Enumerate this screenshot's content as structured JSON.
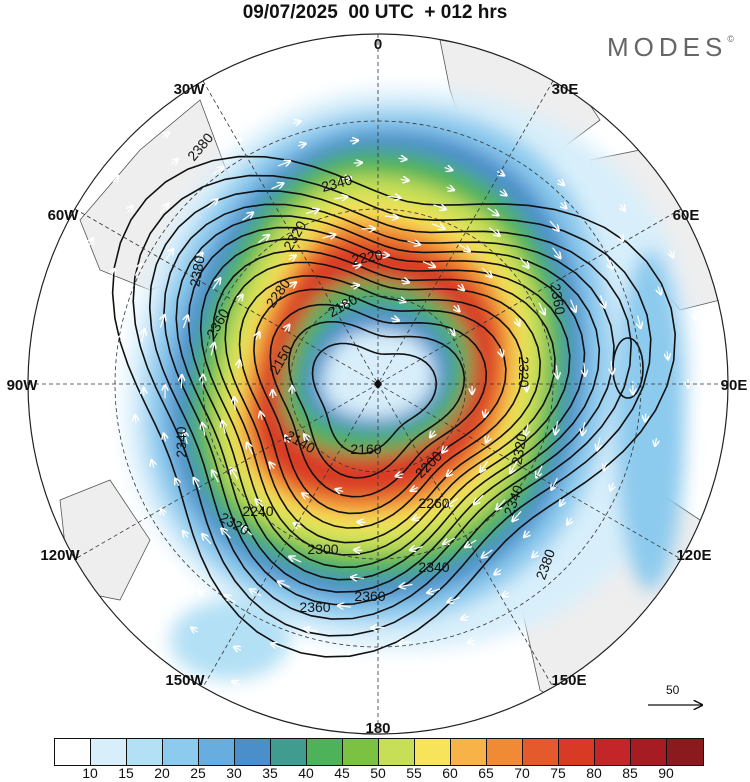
{
  "title": "09/07/2025  00 UTC  + 012 hrs",
  "brand": "MODES",
  "brand_mark": "©",
  "longitude_labels": [
    "0",
    "30E",
    "60E",
    "90E",
    "120E",
    "150E",
    "180",
    "150W",
    "120W",
    "90W",
    "60W",
    "30W"
  ],
  "contour_labels": [
    "2140",
    "2150",
    "2160",
    "2180",
    "2200",
    "2220",
    "2240",
    "2260",
    "2280",
    "2300",
    "2320",
    "2340",
    "2360",
    "2380"
  ],
  "wind_speed_bins": [
    {
      "label": "",
      "color": "#ffffff"
    },
    {
      "label": "10",
      "color": "#d8effb"
    },
    {
      "label": "15",
      "color": "#b3e0f5"
    },
    {
      "label": "20",
      "color": "#8ccaee"
    },
    {
      "label": "25",
      "color": "#67ade0"
    },
    {
      "label": "30",
      "color": "#4b8fca"
    },
    {
      "label": "35",
      "color": "#3f9c8e"
    },
    {
      "label": "40",
      "color": "#4db25a"
    },
    {
      "label": "45",
      "color": "#7cc242"
    },
    {
      "label": "50",
      "color": "#c6df57"
    },
    {
      "label": "55",
      "color": "#f8e45a"
    },
    {
      "label": "60",
      "color": "#f7b347"
    },
    {
      "label": "65",
      "color": "#f08a35"
    },
    {
      "label": "70",
      "color": "#e45a2c"
    },
    {
      "label": "75",
      "color": "#d93a26"
    },
    {
      "label": "80",
      "color": "#c32528"
    },
    {
      "label": "85",
      "color": "#a51c22"
    },
    {
      "label": "90",
      "color": "#8a1a1d"
    }
  ],
  "reference_vector": "50",
  "colors": {
    "land": "#eeeeee",
    "coast": "#444444",
    "contour": "#111111",
    "grid": "#333333",
    "arrow": "#ffffff"
  }
}
